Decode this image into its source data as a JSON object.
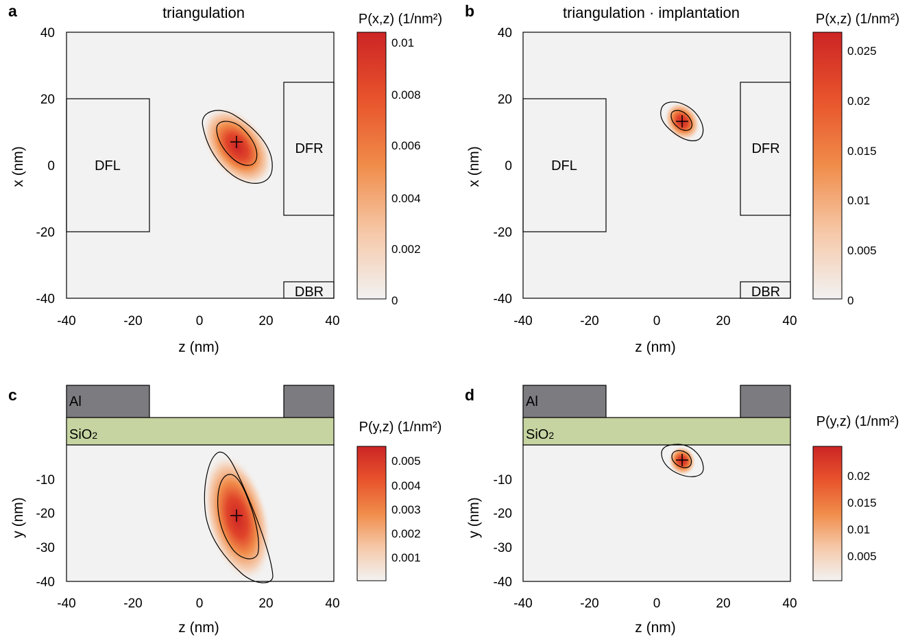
{
  "colors": {
    "plot_bg": "#f2f2f2",
    "density_high": "#cc2525",
    "density_mid": "#f08c4a",
    "density_low": "#f2f2f2",
    "aluminum": "#7b7b80",
    "oxide": "#c6d4a1",
    "electrode_fill": "#f2f2f2"
  },
  "chart_data": [
    {
      "type": "heatmap",
      "panel": "a",
      "title": "triangulation",
      "xlabel": "z (nm)",
      "ylabel": "x (nm)",
      "xlim": [
        -40,
        40
      ],
      "ylim": [
        -40,
        40
      ],
      "xticks": [
        -40,
        -20,
        0,
        20,
        40
      ],
      "yticks": [
        -40,
        -20,
        0,
        20,
        40
      ],
      "colorbar": {
        "label": "P(x,z) (1/nm²)",
        "range": [
          0,
          0.0102
        ],
        "ticks": [
          0,
          0.002,
          0.004,
          0.006,
          0.008,
          0.01
        ],
        "tick_labels": [
          "0",
          "0.002",
          "0.004",
          "0.006",
          "0.008",
          "0.01"
        ]
      },
      "peak": {
        "z": 11,
        "x": 7
      },
      "electrodes": [
        {
          "name": "DFL",
          "z0": -40,
          "z1": -15,
          "x0": -20,
          "x1": 20
        },
        {
          "name": "DFR",
          "z0": 25,
          "z1": 40,
          "x0": -15,
          "x1": 25
        },
        {
          "name": "DBR",
          "z0": 25,
          "z1": 40,
          "x0": -40,
          "x1": -35
        }
      ]
    },
    {
      "type": "heatmap",
      "panel": "b",
      "title": "triangulation · implantation",
      "xlabel": "z (nm)",
      "ylabel": "x (nm)",
      "xlim": [
        -40,
        40
      ],
      "ylim": [
        -40,
        40
      ],
      "xticks": [
        -40,
        -20,
        0,
        20,
        40
      ],
      "yticks": [
        -40,
        -20,
        0,
        20,
        40
      ],
      "colorbar": {
        "label": "P(x,z) (1/nm²)",
        "range": [
          0,
          0.0265
        ],
        "ticks": [
          0,
          0.005,
          0.01,
          0.015,
          0.02,
          0.025
        ],
        "tick_labels": [
          "0",
          "0.005",
          "0.01",
          "0.015",
          "0.02",
          "0.025"
        ]
      },
      "peak": {
        "z": 7.5,
        "x": 13
      },
      "electrodes": [
        {
          "name": "DFL",
          "z0": -40,
          "z1": -15,
          "x0": -20,
          "x1": 20
        },
        {
          "name": "DFR",
          "z0": 25,
          "z1": 40,
          "x0": -15,
          "x1": 25
        },
        {
          "name": "DBR",
          "z0": 25,
          "z1": 40,
          "x0": -40,
          "x1": -35
        }
      ]
    },
    {
      "type": "heatmap",
      "panel": "c",
      "xlabel": "z (nm)",
      "ylabel": "y (nm)",
      "xlim": [
        -40,
        40
      ],
      "ylim": [
        -40,
        0
      ],
      "xticks": [
        -40,
        -20,
        0,
        20,
        40
      ],
      "yticks": [
        -40,
        -30,
        -20,
        -10
      ],
      "colorbar": {
        "label": "P(y,z) (1/nm²)",
        "range": [
          0,
          0.0054
        ],
        "ticks": [
          0.001,
          0.002,
          0.003,
          0.004,
          0.005
        ],
        "tick_labels": [
          "0.001",
          "0.002",
          "0.003",
          "0.004",
          "0.005"
        ]
      },
      "peak": {
        "z": 11,
        "y": -20.5
      },
      "layers": {
        "al_label": "Al",
        "oxide_label": "SiO",
        "oxide_sub": "2"
      }
    },
    {
      "type": "heatmap",
      "panel": "d",
      "xlabel": "z (nm)",
      "ylabel": "y (nm)",
      "xlim": [
        -40,
        40
      ],
      "ylim": [
        -40,
        0
      ],
      "xticks": [
        -40,
        -20,
        0,
        20,
        40
      ],
      "yticks": [
        -40,
        -30,
        -20,
        -10
      ],
      "colorbar": {
        "label": "P(y,z) (1/nm²)",
        "range": [
          0,
          0.025
        ],
        "ticks": [
          0.005,
          0.01,
          0.015,
          0.02
        ],
        "tick_labels": [
          "0.005",
          "0.01",
          "0.015",
          "0.02"
        ]
      },
      "peak": {
        "z": 7.5,
        "y": -4.5
      },
      "layers": {
        "al_label": "Al",
        "oxide_label": "SiO",
        "oxide_sub": "2"
      }
    }
  ]
}
